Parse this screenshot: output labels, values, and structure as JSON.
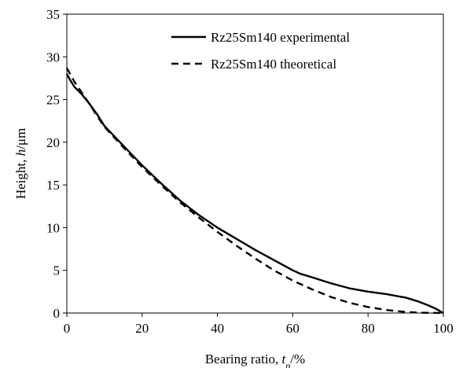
{
  "chart_data": {
    "type": "line",
    "xlabel_parts": [
      {
        "text": "Bearing ratio, ",
        "italic": false,
        "sub": false
      },
      {
        "text": "t",
        "italic": true,
        "sub": false
      },
      {
        "text": "p",
        "italic": true,
        "sub": true
      },
      {
        "text": "/%",
        "italic": false,
        "sub": false
      }
    ],
    "ylabel_parts": [
      {
        "text": "Height, ",
        "italic": false
      },
      {
        "text": "h",
        "italic": true
      },
      {
        "text": "/μm",
        "italic": false
      }
    ],
    "xlim": [
      0,
      100
    ],
    "ylim": [
      0,
      35
    ],
    "xticks": [
      0,
      20,
      40,
      60,
      80,
      100
    ],
    "yticks": [
      0,
      5,
      10,
      15,
      20,
      25,
      30,
      35
    ],
    "grid": false,
    "legend_position": "top-right",
    "series": [
      {
        "name": "Rz25Sm140 experimental",
        "color": "#000000",
        "dash": "solid",
        "x": [
          0,
          1,
          2,
          4,
          6,
          8,
          10,
          15,
          20,
          25,
          30,
          35,
          40,
          45,
          50,
          55,
          60,
          62,
          65,
          70,
          75,
          80,
          85,
          90,
          93,
          96,
          98,
          100
        ],
        "y": [
          28.0,
          27.2,
          26.5,
          25.6,
          24.5,
          23.3,
          21.9,
          19.6,
          17.3,
          15.2,
          13.2,
          11.5,
          10.0,
          8.7,
          7.4,
          6.2,
          5.0,
          4.6,
          4.2,
          3.5,
          2.9,
          2.5,
          2.2,
          1.8,
          1.4,
          0.9,
          0.5,
          0.0
        ]
      },
      {
        "name": "Rz25Sm140 theoretical",
        "color": "#000000",
        "dash": "dashed",
        "x": [
          0,
          1,
          2,
          4,
          6,
          8,
          10,
          15,
          20,
          25,
          30,
          35,
          40,
          45,
          50,
          55,
          60,
          65,
          70,
          75,
          80,
          85,
          90,
          95,
          100
        ],
        "y": [
          28.7,
          27.9,
          27.1,
          25.8,
          24.5,
          23.1,
          21.8,
          19.4,
          17.1,
          15.0,
          13.0,
          11.2,
          9.5,
          7.9,
          6.4,
          5.0,
          3.8,
          2.8,
          1.9,
          1.2,
          0.7,
          0.35,
          0.12,
          0.03,
          0.0
        ]
      }
    ]
  }
}
